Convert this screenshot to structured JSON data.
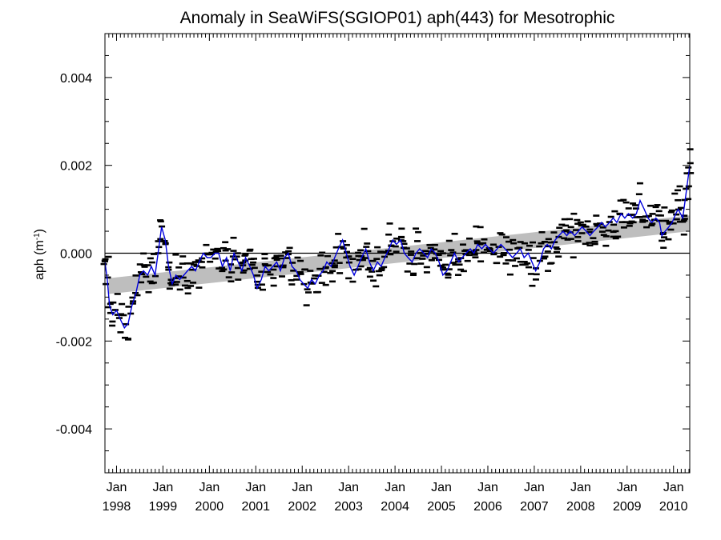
{
  "chart_data": {
    "type": "scatter",
    "title": "Anomaly in SeaWiFS(SGIOP01) aph(443) for Mesotrophic",
    "ylabel": "aph (m",
    "ylabel_exp": "-1",
    "ylabel_close": ")",
    "xlim": [
      1997.75,
      2010.35
    ],
    "ylim": [
      -0.005,
      0.005
    ],
    "y_ticks": [
      -0.004,
      -0.002,
      0.0,
      0.002,
      0.004
    ],
    "y_tick_labels": [
      "-0.004",
      "-0.002",
      "0.000",
      "0.002",
      "0.004"
    ],
    "x_ticks": [
      1998,
      1999,
      2000,
      2001,
      2002,
      2003,
      2004,
      2005,
      2006,
      2007,
      2008,
      2009,
      2010
    ],
    "x_tick_month": "Jan",
    "x_tick_years": [
      "1998",
      "1999",
      "2000",
      "2001",
      "2002",
      "2003",
      "2004",
      "2005",
      "2006",
      "2007",
      "2008",
      "2009",
      "2010"
    ],
    "zero_line": 0.0,
    "trend_band": {
      "start": [
        1997.83,
        -0.00075
      ],
      "end": [
        2010.35,
        0.00068
      ],
      "half_width": 0.00018,
      "color": "#bebebe"
    },
    "series": [
      {
        "type": "line",
        "color": "#0000dd",
        "points": [
          [
            1997.75,
            -0.0002
          ],
          [
            1997.8,
            -0.0006
          ],
          [
            1997.85,
            -0.0012
          ],
          [
            1997.92,
            -0.0014
          ],
          [
            1998.0,
            -0.0013
          ],
          [
            1998.08,
            -0.0015
          ],
          [
            1998.17,
            -0.0017
          ],
          [
            1998.25,
            -0.0016
          ],
          [
            1998.33,
            -0.0012
          ],
          [
            1998.42,
            -0.0009
          ],
          [
            1998.5,
            -0.0005
          ],
          [
            1998.58,
            -0.0004
          ],
          [
            1998.67,
            -0.0005
          ],
          [
            1998.75,
            -0.0003
          ],
          [
            1998.83,
            -0.0005
          ],
          [
            1998.92,
            0.0002
          ],
          [
            1998.97,
            0.0006
          ],
          [
            1999.05,
            0.0003
          ],
          [
            1999.12,
            -0.0003
          ],
          [
            1999.2,
            -0.0007
          ],
          [
            1999.28,
            -0.0005
          ],
          [
            1999.36,
            -0.0006
          ],
          [
            1999.45,
            -0.0005
          ],
          [
            1999.53,
            -0.0004
          ],
          [
            1999.62,
            -0.0003
          ],
          [
            1999.7,
            -0.0004
          ],
          [
            1999.78,
            -0.0002
          ],
          [
            1999.87,
            0.0
          ],
          [
            1999.95,
            -0.0001
          ],
          [
            2000.03,
            -0.0001
          ],
          [
            2000.12,
            0.0
          ],
          [
            2000.2,
            0.0
          ],
          [
            2000.28,
            -0.0003
          ],
          [
            2000.37,
            -0.0001
          ],
          [
            2000.45,
            -0.0004
          ],
          [
            2000.53,
            0.0
          ],
          [
            2000.62,
            -0.0002
          ],
          [
            2000.7,
            -0.0004
          ],
          [
            2000.78,
            -0.0001
          ],
          [
            2000.87,
            -0.0003
          ],
          [
            2000.95,
            -0.0005
          ],
          [
            2001.03,
            -0.0008
          ],
          [
            2001.12,
            -0.0006
          ],
          [
            2001.2,
            -0.0003
          ],
          [
            2001.28,
            -0.0004
          ],
          [
            2001.37,
            -0.0003
          ],
          [
            2001.45,
            -0.0002
          ],
          [
            2001.53,
            -0.0004
          ],
          [
            2001.62,
            -0.0001
          ],
          [
            2001.7,
            0.0
          ],
          [
            2001.78,
            -0.0003
          ],
          [
            2001.87,
            -0.0004
          ],
          [
            2001.95,
            -0.0006
          ],
          [
            2002.03,
            -0.0007
          ],
          [
            2002.12,
            -0.0008
          ],
          [
            2002.2,
            -0.0006
          ],
          [
            2002.28,
            -0.0007
          ],
          [
            2002.37,
            -0.0005
          ],
          [
            2002.45,
            -0.0004
          ],
          [
            2002.53,
            -0.0002
          ],
          [
            2002.62,
            -0.0003
          ],
          [
            2002.7,
            -0.0001
          ],
          [
            2002.78,
            0.0001
          ],
          [
            2002.87,
            0.0003
          ],
          [
            2002.95,
            0.0
          ],
          [
            2003.03,
            -0.0003
          ],
          [
            2003.12,
            -0.0005
          ],
          [
            2003.2,
            -0.0003
          ],
          [
            2003.28,
            -0.0001
          ],
          [
            2003.37,
            0.0001
          ],
          [
            2003.45,
            -0.0002
          ],
          [
            2003.53,
            -0.0004
          ],
          [
            2003.62,
            -0.0002
          ],
          [
            2003.7,
            -0.0003
          ],
          [
            2003.78,
            -0.0001
          ],
          [
            2003.87,
            0.0001
          ],
          [
            2003.95,
            0.0003
          ],
          [
            2004.03,
            0.0002
          ],
          [
            2004.12,
            0.0003
          ],
          [
            2004.2,
            0.0
          ],
          [
            2004.28,
            -0.0001
          ],
          [
            2004.37,
            -0.0002
          ],
          [
            2004.45,
            0.0
          ],
          [
            2004.53,
            0.0001
          ],
          [
            2004.62,
            0.0
          ],
          [
            2004.7,
            -0.0001
          ],
          [
            2004.78,
            0.0001
          ],
          [
            2004.87,
            0.0
          ],
          [
            2004.95,
            -0.0002
          ],
          [
            2005.03,
            -0.0005
          ],
          [
            2005.12,
            -0.0004
          ],
          [
            2005.2,
            -0.0002
          ],
          [
            2005.28,
            0.0
          ],
          [
            2005.37,
            -0.0002
          ],
          [
            2005.45,
            -0.0001
          ],
          [
            2005.53,
            0.0
          ],
          [
            2005.62,
            0.0001
          ],
          [
            2005.7,
            0.0
          ],
          [
            2005.78,
            0.0002
          ],
          [
            2005.87,
            0.0001
          ],
          [
            2005.95,
            0.0002
          ],
          [
            2006.03,
            0.0001
          ],
          [
            2006.12,
            0.0
          ],
          [
            2006.2,
            0.0001
          ],
          [
            2006.28,
            0.0002
          ],
          [
            2006.37,
            0.0001
          ],
          [
            2006.45,
            0.0
          ],
          [
            2006.53,
            -0.0001
          ],
          [
            2006.62,
            0.0
          ],
          [
            2006.7,
            0.0001
          ],
          [
            2006.78,
            -0.0001
          ],
          [
            2006.87,
            0.0
          ],
          [
            2006.95,
            -0.0002
          ],
          [
            2007.03,
            -0.0004
          ],
          [
            2007.12,
            -0.0002
          ],
          [
            2007.2,
            0.0001
          ],
          [
            2007.28,
            0.0002
          ],
          [
            2007.37,
            0.0001
          ],
          [
            2007.45,
            0.0003
          ],
          [
            2007.53,
            0.0004
          ],
          [
            2007.62,
            0.0005
          ],
          [
            2007.7,
            0.0004
          ],
          [
            2007.78,
            0.0005
          ],
          [
            2007.87,
            0.0004
          ],
          [
            2007.95,
            0.0005
          ],
          [
            2008.03,
            0.0006
          ],
          [
            2008.12,
            0.0005
          ],
          [
            2008.2,
            0.0004
          ],
          [
            2008.28,
            0.0005
          ],
          [
            2008.37,
            0.0006
          ],
          [
            2008.45,
            0.0007
          ],
          [
            2008.53,
            0.0006
          ],
          [
            2008.62,
            0.0007
          ],
          [
            2008.7,
            0.0008
          ],
          [
            2008.78,
            0.0007
          ],
          [
            2008.87,
            0.0009
          ],
          [
            2008.95,
            0.0008
          ],
          [
            2009.03,
            0.0009
          ],
          [
            2009.12,
            0.0008
          ],
          [
            2009.2,
            0.0009
          ],
          [
            2009.28,
            0.0012
          ],
          [
            2009.37,
            0.001
          ],
          [
            2009.45,
            0.0008
          ],
          [
            2009.53,
            0.0007
          ],
          [
            2009.62,
            0.0008
          ],
          [
            2009.7,
            0.0007
          ],
          [
            2009.75,
            0.0004
          ],
          [
            2009.82,
            0.0005
          ],
          [
            2009.9,
            0.0006
          ],
          [
            2009.97,
            0.0007
          ],
          [
            2010.05,
            0.0009
          ],
          [
            2010.1,
            0.001
          ],
          [
            2010.15,
            0.0009
          ],
          [
            2010.2,
            0.0008
          ],
          [
            2010.25,
            0.0012
          ],
          [
            2010.3,
            0.0016
          ],
          [
            2010.35,
            0.002
          ]
        ]
      }
    ]
  }
}
